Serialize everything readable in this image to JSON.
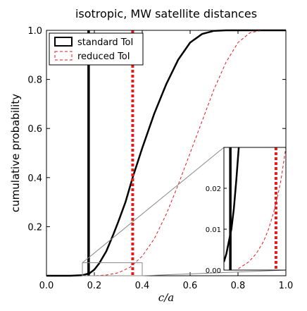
{
  "chart_data": [
    {
      "type": "line",
      "title": "isotropic, MW satellite distances",
      "xlabel": "c/a",
      "ylabel": "cumulative probability",
      "xlim": [
        0.0,
        1.0
      ],
      "ylim": [
        0.0,
        1.0
      ],
      "x_ticks": [
        "0.0",
        "0.2",
        "0.4",
        "0.6",
        "0.8",
        "1.0"
      ],
      "y_ticks": [
        "0.2",
        "0.4",
        "0.6",
        "0.8",
        "1.0"
      ],
      "grid": false,
      "legend": {
        "placement": "top-left",
        "entries": [
          "standard ToI",
          "reduced ToI"
        ]
      },
      "series": [
        {
          "name": "standard ToI",
          "color": "#000000",
          "style": "solid",
          "x": [
            0.0,
            0.1,
            0.15,
            0.18,
            0.2,
            0.22,
            0.25,
            0.28,
            0.3,
            0.33,
            0.36,
            0.4,
            0.45,
            0.5,
            0.55,
            0.6,
            0.65,
            0.7,
            0.75,
            0.8,
            1.0
          ],
          "y": [
            0.0,
            0.0,
            0.002,
            0.01,
            0.025,
            0.05,
            0.1,
            0.17,
            0.22,
            0.3,
            0.4,
            0.52,
            0.66,
            0.78,
            0.88,
            0.95,
            0.985,
            0.998,
            1.0,
            1.0,
            1.0
          ]
        },
        {
          "name": "reduced ToI",
          "color": "#e41a1c",
          "style": "dashed",
          "x": [
            0.0,
            0.2,
            0.25,
            0.3,
            0.35,
            0.4,
            0.45,
            0.5,
            0.55,
            0.6,
            0.65,
            0.7,
            0.75,
            0.8,
            0.85,
            0.9,
            1.0
          ],
          "y": [
            0.0,
            0.0,
            0.003,
            0.012,
            0.035,
            0.08,
            0.15,
            0.25,
            0.37,
            0.5,
            0.63,
            0.76,
            0.87,
            0.95,
            0.99,
            1.0,
            1.0
          ]
        }
      ],
      "vlines": [
        {
          "x": 0.176,
          "color": "#000000",
          "style": "solid"
        },
        {
          "x": 0.36,
          "color": "#e41a1c",
          "style": "dotted"
        }
      ]
    },
    {
      "type": "line",
      "title": "",
      "xlim": [
        0.15,
        0.4
      ],
      "ylim": [
        0.0,
        0.03
      ],
      "y_ticks": [
        "0.00",
        "0.01",
        "0.02"
      ],
      "series": [
        {
          "name": "standard ToI",
          "color": "#000000",
          "style": "solid",
          "x": [
            0.15,
            0.16,
            0.17,
            0.18,
            0.19,
            0.2,
            0.21
          ],
          "y": [
            0.002,
            0.004,
            0.007,
            0.01,
            0.015,
            0.022,
            0.03
          ]
        },
        {
          "name": "reduced ToI",
          "color": "#e41a1c",
          "style": "dashed",
          "x": [
            0.15,
            0.2,
            0.25,
            0.28,
            0.31,
            0.33,
            0.35,
            0.37,
            0.38,
            0.39,
            0.4
          ],
          "y": [
            0.0,
            0.0,
            0.002,
            0.004,
            0.007,
            0.01,
            0.014,
            0.019,
            0.022,
            0.026,
            0.03
          ]
        }
      ],
      "vlines": [
        {
          "x": 0.176,
          "color": "#000000",
          "style": "solid"
        },
        {
          "x": 0.36,
          "color": "#e41a1c",
          "style": "dotted"
        }
      ]
    }
  ]
}
